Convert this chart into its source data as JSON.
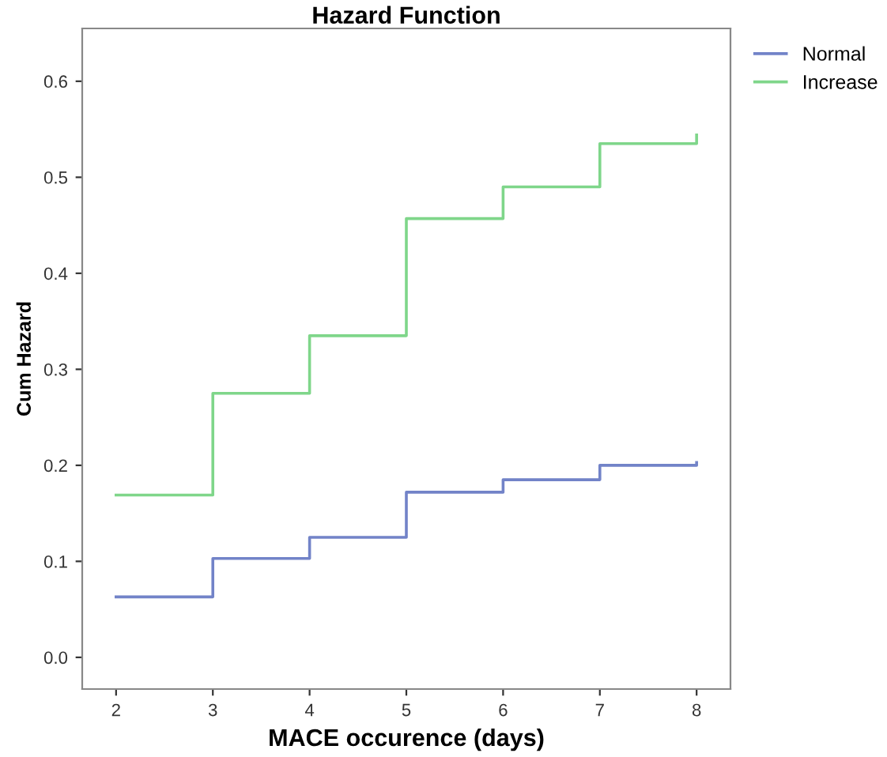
{
  "chart_data": {
    "type": "step",
    "title": "Hazard Function",
    "xlabel": "MACE occurence (days)",
    "ylabel": "Cum Hazard",
    "x": [
      2,
      3,
      4,
      5,
      6,
      7,
      8
    ],
    "series": [
      {
        "name": "Normal",
        "color": "#7283c8",
        "values": [
          0.063,
          0.103,
          0.125,
          0.172,
          0.185,
          0.2,
          0.203
        ]
      },
      {
        "name": "Increase",
        "color": "#7fd68a",
        "values": [
          0.169,
          0.275,
          0.335,
          0.457,
          0.49,
          0.535,
          0.544
        ]
      }
    ],
    "xlim": [
      1.65,
      8.35
    ],
    "ylim": [
      -0.033,
      0.655
    ],
    "xticks": [
      2,
      3,
      4,
      5,
      6,
      7,
      8
    ],
    "yticks": [
      {
        "value": 0,
        "label": "0.0"
      },
      {
        "value": 0.1,
        "label": "0.1"
      },
      {
        "value": 0.2,
        "label": "0.2"
      },
      {
        "value": 0.3,
        "label": "0.3"
      },
      {
        "value": 0.4,
        "label": "0.4"
      },
      {
        "value": 0.5,
        "label": "0.5"
      },
      {
        "value": 0.6,
        "label": "0.6"
      }
    ],
    "grid": false,
    "legend": "top right"
  }
}
